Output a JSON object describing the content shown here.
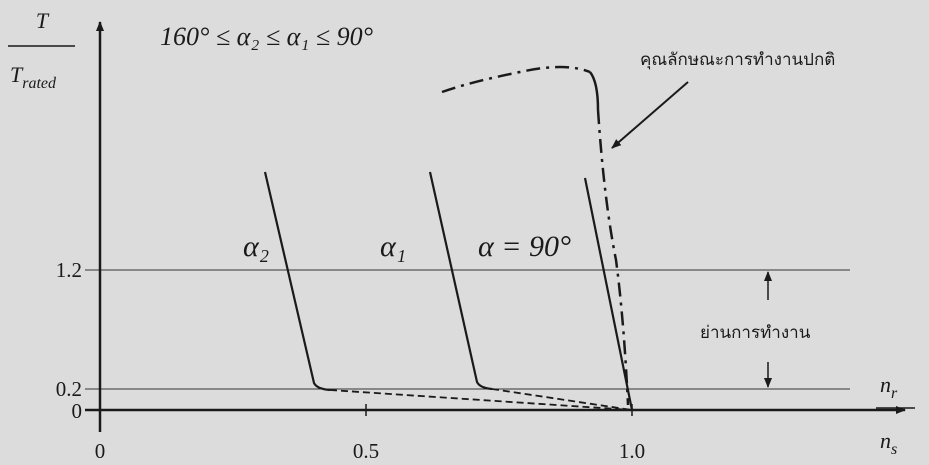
{
  "y_axis_label": {
    "numerator": "T",
    "denominator": "T",
    "denominator_subscript": "rated"
  },
  "x_axis_label": {
    "numerator": "n",
    "numerator_subscript": "r",
    "denominator": "n",
    "denominator_subscript": "s"
  },
  "x_ticks": [
    "0",
    "0.5",
    "1.0"
  ],
  "y_ticks": [
    "1.2",
    "0.2",
    "0"
  ],
  "condition": "160° ≤ α₂ ≤ α₁ ≤ 90°",
  "normal_characteristic": "คุณลักษณะการทำงานปกติ",
  "curve_labels": [
    "α₂",
    "α₁",
    "α = 90°"
  ],
  "operating_range": "ย่านการทำงาน"
}
